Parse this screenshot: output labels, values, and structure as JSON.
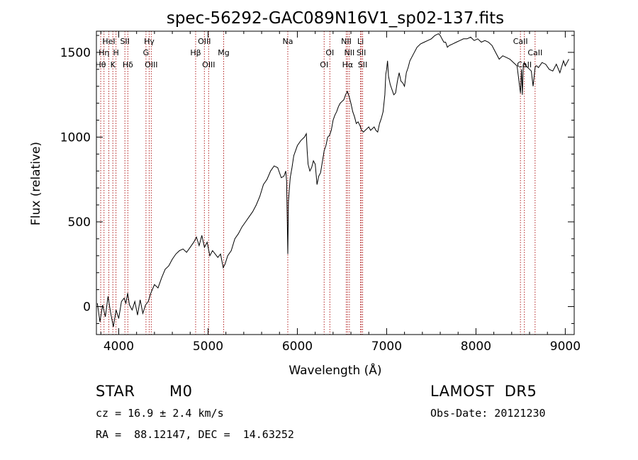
{
  "chart_data": {
    "type": "line",
    "title": "spec-56292-GAC089N16V1_sp02-137.fits",
    "xlabel": "Wavelength (Å)",
    "ylabel": "Flux (relative)",
    "xlim": [
      3750,
      9100
    ],
    "ylim": [
      -165,
      1625
    ],
    "xticks": [
      4000,
      5000,
      6000,
      7000,
      8000,
      9000
    ],
    "yticks": [
      0,
      500,
      1000,
      1500
    ],
    "grid": false,
    "line_color": "#000000",
    "marker_color": "#b22222",
    "series": [
      {
        "x": [
          3760,
          3790,
          3820,
          3850,
          3880,
          3910,
          3940,
          3970,
          4000,
          4030,
          4060,
          4080,
          4100,
          4120,
          4150,
          4180,
          4210,
          4240,
          4270,
          4300,
          4330,
          4360,
          4400,
          4440,
          4480,
          4520,
          4560,
          4600,
          4640,
          4680,
          4720,
          4760,
          4800,
          4840,
          4870,
          4900,
          4930,
          4960,
          4990,
          5020,
          5050,
          5080,
          5110,
          5140,
          5170,
          5190,
          5220,
          5260,
          5300,
          5340,
          5380,
          5420,
          5460,
          5500,
          5540,
          5580,
          5620,
          5660,
          5700,
          5740,
          5780,
          5820,
          5850,
          5870,
          5880,
          5893,
          5900,
          5910,
          5920,
          5940,
          5960,
          6000,
          6040,
          6080,
          6100,
          6110,
          6120,
          6140,
          6160,
          6180,
          6200,
          6220,
          6240,
          6260,
          6300,
          6320,
          6340,
          6360,
          6380,
          6400,
          6420,
          6440,
          6460,
          6480,
          6500,
          6520,
          6540,
          6560,
          6580,
          6600,
          6620,
          6640,
          6660,
          6680,
          6700,
          6720,
          6740,
          6760,
          6780,
          6800,
          6820,
          6840,
          6860,
          6880,
          6900,
          6920,
          6940,
          6960,
          6980,
          6990,
          7000,
          7010,
          7020,
          7040,
          7060,
          7080,
          7100,
          7120,
          7140,
          7160,
          7180,
          7200,
          7220,
          7240,
          7260,
          7300,
          7340,
          7380,
          7420,
          7460,
          7500,
          7540,
          7580,
          7600,
          7620,
          7640,
          7660,
          7680,
          7700,
          7740,
          7780,
          7820,
          7860,
          7900,
          7940,
          7980,
          8020,
          8060,
          8100,
          8140,
          8180,
          8200,
          8220,
          8260,
          8300,
          8340,
          8380,
          8420,
          8460,
          8498,
          8510,
          8520,
          8530,
          8542,
          8550,
          8560,
          8580,
          8600,
          8620,
          8640,
          8662,
          8670,
          8680,
          8700,
          8740,
          8780,
          8820,
          8860,
          8900,
          8940,
          8980,
          9000,
          9020,
          9040
        ],
        "y": [
          20,
          -90,
          10,
          -60,
          60,
          -40,
          -120,
          -20,
          -70,
          30,
          50,
          20,
          80,
          10,
          -20,
          30,
          -50,
          40,
          -40,
          10,
          30,
          80,
          130,
          110,
          170,
          220,
          240,
          280,
          310,
          330,
          340,
          320,
          350,
          380,
          410,
          360,
          420,
          350,
          380,
          300,
          330,
          310,
          290,
          310,
          230,
          250,
          300,
          330,
          400,
          430,
          470,
          500,
          530,
          560,
          600,
          650,
          720,
          750,
          800,
          830,
          820,
          760,
          770,
          800,
          740,
          310,
          620,
          690,
          760,
          820,
          890,
          950,
          980,
          1000,
          1020,
          920,
          840,
          800,
          820,
          860,
          840,
          720,
          770,
          790,
          920,
          950,
          1000,
          1010,
          1040,
          1100,
          1130,
          1150,
          1180,
          1200,
          1210,
          1220,
          1250,
          1270,
          1240,
          1200,
          1150,
          1120,
          1080,
          1090,
          1070,
          1040,
          1030,
          1040,
          1050,
          1060,
          1040,
          1050,
          1060,
          1040,
          1030,
          1080,
          1110,
          1150,
          1250,
          1370,
          1400,
          1450,
          1360,
          1310,
          1280,
          1250,
          1260,
          1330,
          1380,
          1330,
          1320,
          1300,
          1380,
          1410,
          1450,
          1490,
          1530,
          1550,
          1560,
          1570,
          1580,
          1600,
          1610,
          1600,
          1580,
          1560,
          1560,
          1530,
          1540,
          1550,
          1560,
          1570,
          1580,
          1580,
          1590,
          1570,
          1580,
          1560,
          1570,
          1560,
          1540,
          1520,
          1500,
          1460,
          1480,
          1470,
          1460,
          1440,
          1420,
          1260,
          1400,
          1250,
          1430,
          1440,
          1430,
          1420,
          1410,
          1400,
          1390,
          1300,
          1410,
          1420,
          1420,
          1410,
          1440,
          1430,
          1400,
          1390,
          1430,
          1380,
          1450,
          1420,
          1440,
          1460
        ]
      }
    ],
    "spectral_lines": [
      {
        "label": "Hη",
        "x": 3835
      },
      {
        "label": "Hθ",
        "x": 3798
      },
      {
        "label": "HeI",
        "x": 3889
      },
      {
        "label": "K",
        "x": 3934
      },
      {
        "label": "H",
        "x": 3969
      },
      {
        "label": "SII",
        "x": 4069
      },
      {
        "label": "Hδ",
        "x": 4102
      },
      {
        "label": "Hγ",
        "x": 4341
      },
      {
        "label": "G",
        "x": 4305
      },
      {
        "label": "OIII",
        "x": 4364
      },
      {
        "label": "Hβ",
        "x": 4861
      },
      {
        "label": "OIII",
        "x": 4959
      },
      {
        "label": "OIII",
        "x": 5007
      },
      {
        "label": "Mg",
        "x": 5175
      },
      {
        "label": "Na",
        "x": 5893
      },
      {
        "label": "OI",
        "x": 6300
      },
      {
        "label": "OI",
        "x": 6364
      },
      {
        "label": "NII",
        "x": 6548
      },
      {
        "label": "Hα",
        "x": 6563
      },
      {
        "label": "NII",
        "x": 6583
      },
      {
        "label": "Li",
        "x": 6708
      },
      {
        "label": "SII",
        "x": 6716
      },
      {
        "label": "SII",
        "x": 6731
      },
      {
        "label": "CaII",
        "x": 8498
      },
      {
        "label": "CaII",
        "x": 8542
      },
      {
        "label": "CaII",
        "x": 8662
      }
    ]
  },
  "info": {
    "class": "STAR",
    "subclass": "M0",
    "survey": "LAMOST  DR5",
    "cz": "cz = 16.9 ± 2.4 km/s",
    "obs_date": "Obs-Date: 20121230",
    "coords": "RA =  88.12147, DEC =  14.63252"
  }
}
